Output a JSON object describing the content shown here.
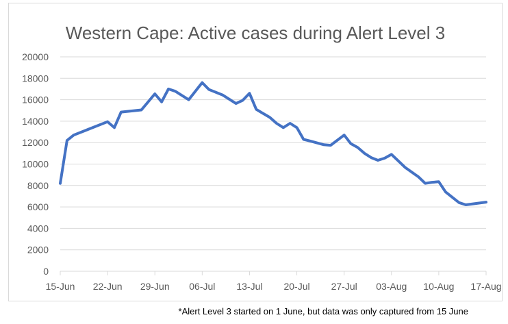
{
  "footnote": "*Alert Level 3 started on 1 June, but data was only captured from 15 June",
  "chart_data": {
    "type": "line",
    "title": "Western Cape: Active cases during Alert Level 3",
    "xlabel": "",
    "ylabel": "",
    "ylim": [
      0,
      20000
    ],
    "yticks": [
      0,
      2000,
      4000,
      6000,
      8000,
      10000,
      12000,
      14000,
      16000,
      18000,
      20000
    ],
    "xticks": [
      "15-Jun",
      "22-Jun",
      "29-Jun",
      "06-Jul",
      "13-Jul",
      "20-Jul",
      "27-Jul",
      "03-Aug",
      "10-Aug",
      "17-Aug"
    ],
    "grid": "horizontal",
    "legend": "none",
    "line_color": "#4472c4",
    "series": [
      {
        "points": [
          [
            "15-Jun",
            8200
          ],
          [
            "16-Jun",
            12200
          ],
          [
            "17-Jun",
            12700
          ],
          [
            "22-Jun",
            13950
          ],
          [
            "23-Jun",
            13400
          ],
          [
            "24-Jun",
            14850
          ],
          [
            "27-Jun",
            15050
          ],
          [
            "29-Jun",
            16550
          ],
          [
            "30-Jun",
            15800
          ],
          [
            "01-Jul",
            17000
          ],
          [
            "02-Jul",
            16800
          ],
          [
            "04-Jul",
            16000
          ],
          [
            "06-Jul",
            17600
          ],
          [
            "07-Jul",
            16950
          ],
          [
            "09-Jul",
            16450
          ],
          [
            "11-Jul",
            15650
          ],
          [
            "12-Jul",
            15950
          ],
          [
            "13-Jul",
            16600
          ],
          [
            "14-Jul",
            15100
          ],
          [
            "16-Jul",
            14350
          ],
          [
            "17-Jul",
            13800
          ],
          [
            "18-Jul",
            13400
          ],
          [
            "19-Jul",
            13800
          ],
          [
            "20-Jul",
            13400
          ],
          [
            "21-Jul",
            12300
          ],
          [
            "22-Jul",
            12150
          ],
          [
            "24-Jul",
            11800
          ],
          [
            "25-Jul",
            11750
          ],
          [
            "27-Jul",
            12700
          ],
          [
            "28-Jul",
            11900
          ],
          [
            "29-Jul",
            11550
          ],
          [
            "30-Jul",
            11000
          ],
          [
            "31-Jul",
            10600
          ],
          [
            "01-Aug",
            10350
          ],
          [
            "02-Aug",
            10550
          ],
          [
            "03-Aug",
            10900
          ],
          [
            "04-Aug",
            10300
          ],
          [
            "05-Aug",
            9700
          ],
          [
            "07-Aug",
            8800
          ],
          [
            "08-Aug",
            8200
          ],
          [
            "09-Aug",
            8300
          ],
          [
            "10-Aug",
            8350
          ],
          [
            "11-Aug",
            7400
          ],
          [
            "13-Aug",
            6400
          ],
          [
            "14-Aug",
            6200
          ],
          [
            "17-Aug",
            6450
          ]
        ]
      }
    ]
  }
}
